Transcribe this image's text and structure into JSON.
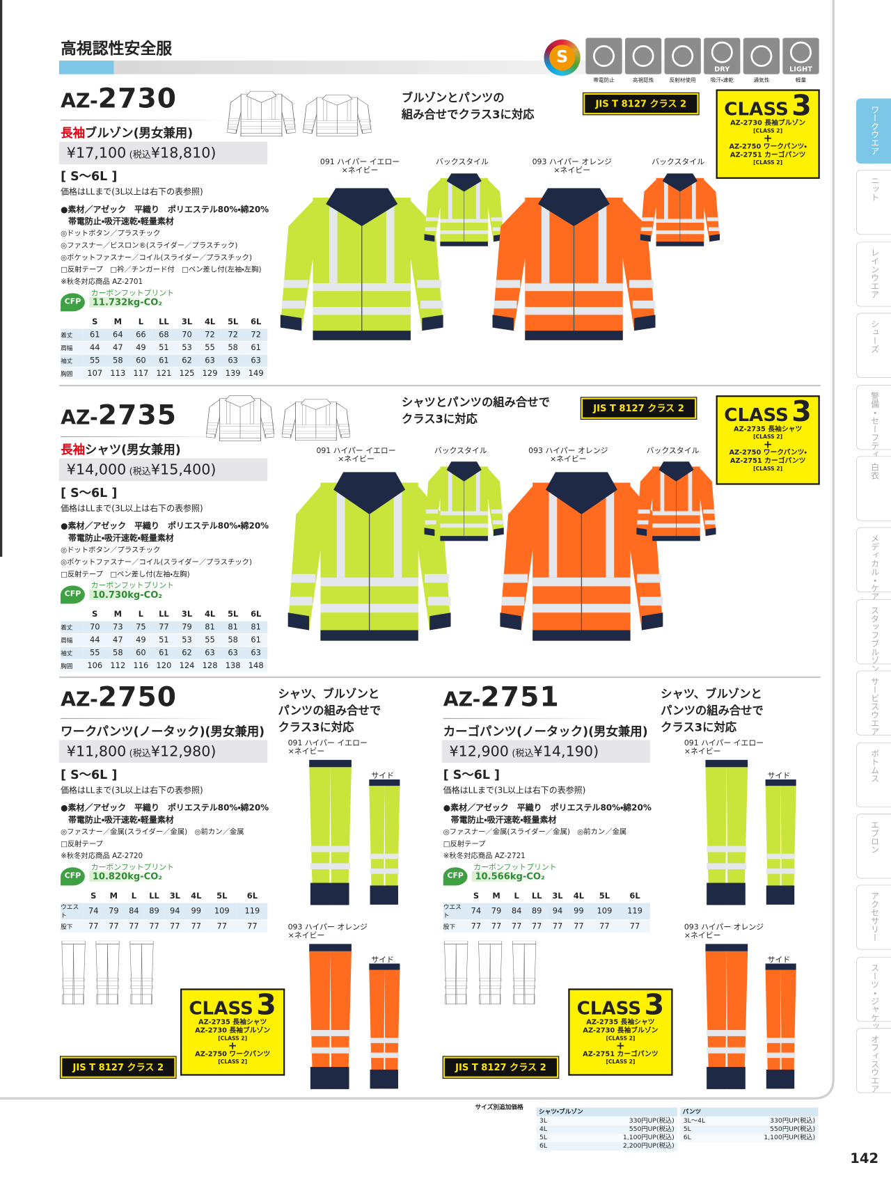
{
  "header": {
    "title": "高視認性安全服",
    "badge": "S",
    "icons": [
      {
        "label": "帯電防止"
      },
      {
        "label": "高視認性"
      },
      {
        "label": "反射材使用"
      },
      {
        "mark": "DRY",
        "label": "吸汗・速乾"
      },
      {
        "label": "通気性"
      },
      {
        "mark": "LIGHT",
        "label": "軽量"
      }
    ]
  },
  "side_tabs": [
    "ワークウエア",
    "ニット",
    "レインウエア",
    "シューズ",
    "警備・セーフティ",
    "白衣",
    "メディカル・ケア",
    "スタッフブルゾン",
    "サービスウエア",
    "ボトムス",
    "エプロン",
    "アクセサリー",
    "スーツ・ジャケット",
    "オフィスウエア"
  ],
  "products": [
    {
      "code_prefix": "AZ-",
      "code_number": "2730",
      "name_highlight": "長袖",
      "name": "ブルゾン(男女兼用)",
      "price": "¥17,100",
      "tax_label": "(税込",
      "tax_price": "¥18,810)",
      "size_range": "[ S～6L ]",
      "price_note": "価格はLLまで(3L以上は右下の表参照)",
      "materials": [
        "●素材／アゼック　平織り　ポリエステル80%・綿20%",
        "帯電防止・吸汗速乾・軽量素材",
        "◎ドットボタン／プラスチック",
        "◎ファスナー／ビスロン®(スライダー／プラスチック)",
        "◎ポケットファスナー／コイル(スライダー／プラスチック)",
        "□反射テープ　□衿／チンガード付　□ペン差し付(左袖・左胸)",
        "※秋冬対応商品 AZ-2701"
      ],
      "cfp": "CFP",
      "cfp_label": "カーボンフットプリント",
      "cfp_value": "11.732kg-CO₂",
      "size_table": {
        "sizes": [
          "S",
          "M",
          "L",
          "LL",
          "3L",
          "4L",
          "5L",
          "6L"
        ],
        "rows": [
          {
            "label": "着丈",
            "values": [
              61,
              64,
              66,
              68,
              70,
              72,
              72,
              72
            ]
          },
          {
            "label": "肩幅",
            "values": [
              44,
              47,
              49,
              51,
              53,
              55,
              58,
              61
            ]
          },
          {
            "label": "袖丈",
            "values": [
              55,
              58,
              60,
              61,
              62,
              63,
              63,
              63
            ]
          },
          {
            "label": "胸囲",
            "values": [
              107,
              113,
              117,
              121,
              125,
              129,
              139,
              149
            ]
          }
        ]
      },
      "headline": [
        "ブルゾンとパンツの",
        "組み合せでクラス3に対応"
      ],
      "jis": "JIS T 8127 クラス 2",
      "class_box": {
        "word": "CLASS",
        "number": "3",
        "lines": [
          "AZ-2730 長袖ブルゾン",
          "[CLASS 2]",
          "+",
          "AZ-2750 ワークパンツ・",
          "AZ-2751 カーゴパンツ",
          "[CLASS 2]"
        ]
      },
      "variants": [
        {
          "caption": [
            "091 ハイパー イエロー",
            "×ネイビー"
          ],
          "back": "バックスタイル"
        },
        {
          "caption": [
            "093 ハイパー オレンジ",
            "×ネイビー"
          ],
          "back": "バックスタイル"
        }
      ]
    },
    {
      "code_prefix": "AZ-",
      "code_number": "2735",
      "name_highlight": "長袖",
      "name": "シャツ(男女兼用)",
      "price": "¥14,000",
      "tax_label": "(税込",
      "tax_price": "¥15,400)",
      "size_range": "[ S～6L ]",
      "price_note": "価格はLLまで(3L以上は右下の表参照)",
      "materials": [
        "●素材／アゼック　平織り　ポリエステル80%・綿20%",
        "帯電防止・吸汗速乾・軽量素材",
        "◎ドットボタン／プラスチック",
        "◎ポケットファスナー／コイル(スライダー／プラスチック)",
        "□反射テープ　□ペン差し付(左袖・左胸)"
      ],
      "cfp": "CFP",
      "cfp_label": "カーボンフットプリント",
      "cfp_value": "10.730kg-CO₂",
      "size_table": {
        "sizes": [
          "S",
          "M",
          "L",
          "LL",
          "3L",
          "4L",
          "5L",
          "6L"
        ],
        "rows": [
          {
            "label": "着丈",
            "values": [
              70,
              73,
              75,
              77,
              79,
              81,
              81,
              81
            ]
          },
          {
            "label": "肩幅",
            "values": [
              44,
              47,
              49,
              51,
              53,
              55,
              58,
              61
            ]
          },
          {
            "label": "袖丈",
            "values": [
              55,
              58,
              60,
              61,
              62,
              63,
              63,
              63
            ]
          },
          {
            "label": "胸囲",
            "values": [
              106,
              112,
              116,
              120,
              124,
              128,
              138,
              148
            ]
          }
        ]
      },
      "headline": [
        "シャツとパンツの組み合せで",
        "クラス3に対応"
      ],
      "jis": "JIS T 8127 クラス 2",
      "class_box": {
        "word": "CLASS",
        "number": "3",
        "lines": [
          "AZ-2735 長袖シャツ",
          "[CLASS 2]",
          "+",
          "AZ-2750 ワークパンツ・",
          "AZ-2751 カーゴパンツ",
          "[CLASS 2]"
        ]
      },
      "variants": [
        {
          "caption": [
            "091 ハイパー イエロー",
            "×ネイビー"
          ],
          "back": "バックスタイル"
        },
        {
          "caption": [
            "093 ハイパー オレンジ",
            "×ネイビー"
          ],
          "back": "バックスタイル"
        }
      ]
    },
    {
      "code_prefix": "AZ-",
      "code_number": "2750",
      "name": "ワークパンツ(ノータック)(男女兼用)",
      "price": "¥11,800",
      "tax_label": "(税込",
      "tax_price": "¥12,980)",
      "size_range": "[ S～6L ]",
      "price_note": "価格はLLまで(3L以上は右下の表参照)",
      "materials": [
        "●素材／アゼック　平織り　ポリエステル80%・綿20%",
        "帯電防止・吸汗速乾・軽量素材",
        "◎ファスナー／金属(スライダー／金属)　◎前カン／金属",
        "□反射テープ",
        "※秋冬対応商品 AZ-2720"
      ],
      "cfp": "CFP",
      "cfp_label": "カーボンフットプリント",
      "cfp_value": "10.820kg-CO₂",
      "size_table": {
        "sizes": [
          "S",
          "M",
          "L",
          "LL",
          "3L",
          "4L",
          "5L",
          "6L"
        ],
        "rows": [
          {
            "label": "ウエスト",
            "values": [
              74,
              79,
              84,
              89,
              94,
              99,
              109,
              119
            ]
          },
          {
            "label": "股下",
            "values": [
              77,
              77,
              77,
              77,
              77,
              77,
              77,
              77
            ]
          }
        ]
      },
      "headline": [
        "シャツ、ブルゾンと",
        "パンツの組み合せで",
        "クラス3に対応"
      ],
      "jis": "JIS T 8127 クラス 2",
      "class_box": {
        "word": "CLASS",
        "number": "3",
        "lines": [
          "AZ-2735 長袖シャツ",
          "AZ-2730 長袖ブルゾン",
          "[CLASS 2]",
          "+",
          "AZ-2750 ワークパンツ",
          "[CLASS 2]"
        ]
      },
      "variants": [
        {
          "caption": [
            "091 ハイパー イエロー",
            "×ネイビー"
          ],
          "back": "サイド"
        },
        {
          "caption": [
            "093 ハイパー オレンジ",
            "×ネイビー"
          ],
          "back": "サイド"
        }
      ]
    },
    {
      "code_prefix": "AZ-",
      "code_number": "2751",
      "name": "カーゴパンツ(ノータック)(男女兼用)",
      "price": "¥12,900",
      "tax_label": "(税込",
      "tax_price": "¥14,190)",
      "size_range": "[ S～6L ]",
      "price_note": "価格はLLまで(3L以上は右下の表参照)",
      "materials": [
        "●素材／アゼック　平織り　ポリエステル80%・綿20%",
        "帯電防止・吸汗速乾・軽量素材",
        "◎ファスナー／金属(スライダー／金属)　◎前カン／金属",
        "□反射テープ",
        "※秋冬対応商品 AZ-2721"
      ],
      "cfp": "CFP",
      "cfp_label": "カーボンフットプリント",
      "cfp_value": "10.566kg-CO₂",
      "size_table": {
        "sizes": [
          "S",
          "M",
          "L",
          "LL",
          "3L",
          "4L",
          "5L",
          "6L"
        ],
        "rows": [
          {
            "label": "ウエスト",
            "values": [
              74,
              79,
              84,
              89,
              94,
              99,
              109,
              119
            ]
          },
          {
            "label": "股下",
            "values": [
              77,
              77,
              77,
              77,
              77,
              77,
              77,
              77
            ]
          }
        ]
      },
      "headline": [
        "シャツ、ブルゾンと",
        "パンツの組み合せで",
        "クラス3に対応"
      ],
      "jis": "JIS T 8127 クラス 2",
      "class_box": {
        "word": "CLASS",
        "number": "3",
        "lines": [
          "AZ-2735 長袖シャツ",
          "AZ-2730 長袖ブルゾン",
          "[CLASS 2]",
          "+",
          "AZ-2751 カーゴパンツ",
          "[CLASS 2]"
        ]
      },
      "variants": [
        {
          "caption": [
            "091 ハイパー イエロー",
            "×ネイビー"
          ],
          "back": "サイド"
        },
        {
          "caption": [
            "093 ハイパー オレンジ",
            "×ネイビー"
          ],
          "back": "サイド"
        }
      ]
    }
  ],
  "footer": {
    "title": "サイズ別追加価格",
    "groups": [
      {
        "name": "シャツ・ブルゾン",
        "rows": [
          [
            "3L",
            "330円UP(税込)"
          ],
          [
            "4L",
            "550円UP(税込)"
          ],
          [
            "5L",
            "1,100円UP(税込)"
          ],
          [
            "6L",
            "2,200円UP(税込)"
          ]
        ]
      },
      {
        "name": "パンツ",
        "rows": [
          [
            "3L～4L",
            "330円UP(税込)"
          ],
          [
            "5L",
            "550円UP(税込)"
          ],
          [
            "6L",
            "1,100円UP(税込)"
          ]
        ]
      }
    ]
  },
  "page_number": "142"
}
